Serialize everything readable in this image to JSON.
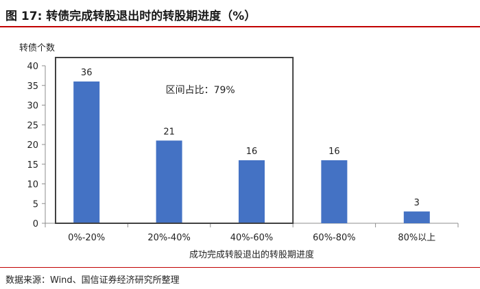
{
  "figure": {
    "title": "图 17:  转债完成转股退出时的转股期进度（%）",
    "source": "数据来源：Wind、国信证券经济研究所整理"
  },
  "chart_data": {
    "type": "bar",
    "categories": [
      "0%-20%",
      "20%-40%",
      "40%-60%",
      "60%-80%",
      "80%以上"
    ],
    "values": [
      36,
      21,
      16,
      16,
      3
    ],
    "data_labels": [
      "36",
      "21",
      "16",
      "16",
      "3"
    ],
    "xlabel": "成功完成转股退出的转股期进度",
    "ylabel": "转债个数",
    "ylim": [
      0,
      40
    ],
    "yticks": [
      0,
      5,
      10,
      15,
      20,
      25,
      30,
      35,
      40
    ],
    "ytick_labels": [
      "0",
      "5",
      "10",
      "15",
      "20",
      "25",
      "30",
      "35",
      "40"
    ],
    "grid": false,
    "bar_color": "#4472C4",
    "annotation": {
      "text": "区间占比：79%",
      "box_categories": [
        "0%-20%",
        "20%-40%",
        "40%-60%"
      ]
    }
  },
  "colors": {
    "accent_rule": "#c00000",
    "box_border": "#404040"
  }
}
